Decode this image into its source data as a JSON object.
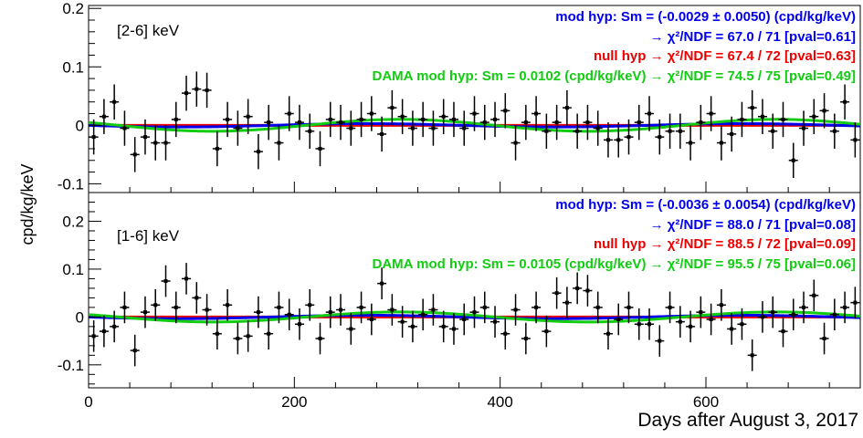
{
  "colors": {
    "mod": "#0000ee",
    "null": "#ee0000",
    "dama": "#11cc11",
    "points": "#000000"
  },
  "figure": {
    "ylabel": "cpd/kg/keV",
    "xlabel": "Days after August 3, 2017",
    "xticks": [
      "0",
      "200",
      "400",
      "600"
    ]
  },
  "chart_data": [
    {
      "type": "scatter",
      "panel": "top",
      "energy_label": "[2-6] keV",
      "xlim": [
        0,
        750
      ],
      "ylim": [
        -0.115,
        0.205
      ],
      "yticks": [
        -0.1,
        0,
        0.1,
        0.2
      ],
      "ytick_labels": [
        "-0.1",
        "0",
        "0.1",
        "0.2"
      ],
      "annotations": [
        {
          "text": "mod hyp: Sm = (-0.0029 ± 0.0050) (cpd/kg/keV)",
          "color": "mod"
        },
        {
          "text": "→ χ²/NDF = 67.0 / 71 [pval=0.61]",
          "color": "mod"
        },
        {
          "text": "null hyp → χ²/NDF = 67.4 / 72 [pval=0.63]",
          "color": "null"
        },
        {
          "text": "DAMA mod hyp: Sm = 0.0102 (cpd/kg/keV) → χ²/NDF = 74.5 / 75 [pval=0.49]",
          "color": "dama"
        }
      ],
      "fits": {
        "mod_amplitude": -0.0029,
        "null_level": 0.0,
        "dama_amplitude": 0.0102
      },
      "x": [
        5,
        15,
        25,
        35,
        45,
        55,
        65,
        75,
        85,
        95,
        105,
        115,
        125,
        135,
        145,
        155,
        165,
        175,
        185,
        195,
        205,
        215,
        225,
        235,
        245,
        255,
        265,
        275,
        285,
        295,
        305,
        315,
        325,
        335,
        345,
        355,
        365,
        375,
        385,
        395,
        405,
        415,
        425,
        435,
        445,
        455,
        465,
        475,
        485,
        495,
        505,
        515,
        525,
        535,
        545,
        555,
        565,
        575,
        585,
        595,
        605,
        615,
        625,
        635,
        645,
        655,
        665,
        675,
        685,
        695,
        705,
        715,
        725,
        735,
        745
      ],
      "y": [
        -0.02,
        0.015,
        0.04,
        -0.005,
        -0.05,
        -0.02,
        -0.03,
        -0.03,
        0.01,
        0.055,
        0.062,
        0.06,
        -0.04,
        0.01,
        -0.005,
        0.015,
        -0.045,
        0.005,
        -0.03,
        0.02,
        0.005,
        -0.01,
        -0.04,
        0.01,
        0.005,
        -0.005,
        0.01,
        0.02,
        -0.015,
        0.03,
        0.015,
        -0.005,
        0.01,
        -0.005,
        0.015,
        0.01,
        -0.005,
        0.02,
        0.005,
        0.01,
        0.025,
        -0.03,
        0.005,
        0.02,
        -0.01,
        0.005,
        0.03,
        -0.01,
        0.005,
        -0.005,
        -0.025,
        -0.025,
        -0.02,
        0.005,
        0.02,
        -0.02,
        -0.01,
        -0.01,
        -0.03,
        0.005,
        0.02,
        -0.03,
        -0.015,
        0.01,
        0.03,
        0.015,
        -0.01,
        0.01,
        -0.06,
        -0.005,
        0.015,
        0.025,
        -0.01,
        0.04,
        -0.025
      ],
      "yerr": [
        0.03,
        0.03,
        0.03,
        0.03,
        0.03,
        0.03,
        0.03,
        0.03,
        0.03,
        0.03,
        0.03,
        0.03,
        0.03,
        0.03,
        0.03,
        0.03,
        0.03,
        0.03,
        0.03,
        0.03,
        0.03,
        0.03,
        0.03,
        0.03,
        0.03,
        0.03,
        0.03,
        0.03,
        0.03,
        0.03,
        0.03,
        0.03,
        0.03,
        0.03,
        0.03,
        0.03,
        0.03,
        0.03,
        0.03,
        0.03,
        0.03,
        0.03,
        0.03,
        0.03,
        0.03,
        0.03,
        0.03,
        0.03,
        0.03,
        0.03,
        0.03,
        0.03,
        0.03,
        0.03,
        0.03,
        0.03,
        0.03,
        0.03,
        0.03,
        0.03,
        0.03,
        0.03,
        0.03,
        0.03,
        0.03,
        0.03,
        0.03,
        0.03,
        0.03,
        0.03,
        0.03,
        0.03,
        0.03,
        0.03,
        0.03
      ]
    },
    {
      "type": "scatter",
      "panel": "bottom",
      "energy_label": "[1-6] keV",
      "xlim": [
        0,
        750
      ],
      "ylim": [
        -0.148,
        0.26
      ],
      "yticks": [
        -0.1,
        0,
        0.1,
        0.2
      ],
      "ytick_labels": [
        "-0.1",
        "0",
        "0.1",
        "0.2"
      ],
      "annotations": [
        {
          "text": "mod hyp: Sm = (-0.0036 ± 0.0054) (cpd/kg/keV)",
          "color": "mod"
        },
        {
          "text": "→ χ²/NDF = 88.0 / 71 [pval=0.08]",
          "color": "mod"
        },
        {
          "text": "null hyp → χ²/NDF = 88.5 / 72 [pval=0.09]",
          "color": "null"
        },
        {
          "text": "DAMA mod hyp: Sm = 0.0105 (cpd/kg/keV) → χ²/NDF = 95.5 / 75 [pval=0.06]",
          "color": "dama"
        }
      ],
      "fits": {
        "mod_amplitude": -0.0036,
        "null_level": 0.0,
        "dama_amplitude": 0.0105
      },
      "x": [
        5,
        15,
        25,
        35,
        45,
        55,
        65,
        75,
        85,
        95,
        105,
        115,
        125,
        135,
        145,
        155,
        165,
        175,
        185,
        195,
        205,
        215,
        225,
        235,
        245,
        255,
        265,
        275,
        285,
        295,
        305,
        315,
        325,
        335,
        345,
        355,
        365,
        375,
        385,
        395,
        405,
        415,
        425,
        435,
        445,
        455,
        465,
        475,
        485,
        495,
        505,
        515,
        525,
        535,
        545,
        555,
        565,
        575,
        585,
        595,
        605,
        615,
        625,
        635,
        645,
        655,
        665,
        675,
        685,
        695,
        705,
        715,
        725,
        735,
        745
      ],
      "y": [
        -0.04,
        -0.03,
        -0.02,
        0.02,
        -0.07,
        0.01,
        0.025,
        0.075,
        0.02,
        0.08,
        0.04,
        0.015,
        -0.035,
        0.025,
        -0.045,
        -0.04,
        0.01,
        -0.035,
        0.02,
        0.005,
        -0.015,
        0.025,
        -0.045,
        0.01,
        0.015,
        -0.025,
        0.02,
        -0.005,
        0.07,
        0.015,
        -0.01,
        -0.02,
        0.005,
        0.015,
        -0.02,
        -0.025,
        -0.005,
        0.01,
        0.02,
        -0.01,
        -0.035,
        0.015,
        -0.045,
        0.02,
        -0.03,
        0.05,
        0.03,
        0.06,
        0.055,
        0.02,
        -0.035,
        -0.005,
        0.02,
        -0.015,
        -0.015,
        -0.05,
        0.02,
        -0.01,
        -0.02,
        0.01,
        -0.005,
        0.025,
        -0.025,
        -0.015,
        -0.08,
        0.0,
        0.01,
        -0.03,
        0.005,
        0.02,
        0.045,
        -0.045,
        0.005,
        0.02,
        0.03
      ],
      "yerr": [
        0.033,
        0.033,
        0.033,
        0.033,
        0.033,
        0.033,
        0.033,
        0.033,
        0.033,
        0.033,
        0.033,
        0.033,
        0.033,
        0.033,
        0.033,
        0.033,
        0.033,
        0.033,
        0.033,
        0.033,
        0.033,
        0.033,
        0.033,
        0.033,
        0.033,
        0.033,
        0.033,
        0.033,
        0.033,
        0.033,
        0.033,
        0.033,
        0.033,
        0.033,
        0.033,
        0.033,
        0.033,
        0.033,
        0.033,
        0.033,
        0.033,
        0.033,
        0.033,
        0.033,
        0.033,
        0.033,
        0.033,
        0.033,
        0.033,
        0.033,
        0.033,
        0.033,
        0.033,
        0.033,
        0.033,
        0.033,
        0.033,
        0.033,
        0.033,
        0.033,
        0.033,
        0.033,
        0.033,
        0.033,
        0.033,
        0.033,
        0.033,
        0.033,
        0.033,
        0.033,
        0.033,
        0.033,
        0.033,
        0.033,
        0.033
      ]
    }
  ]
}
